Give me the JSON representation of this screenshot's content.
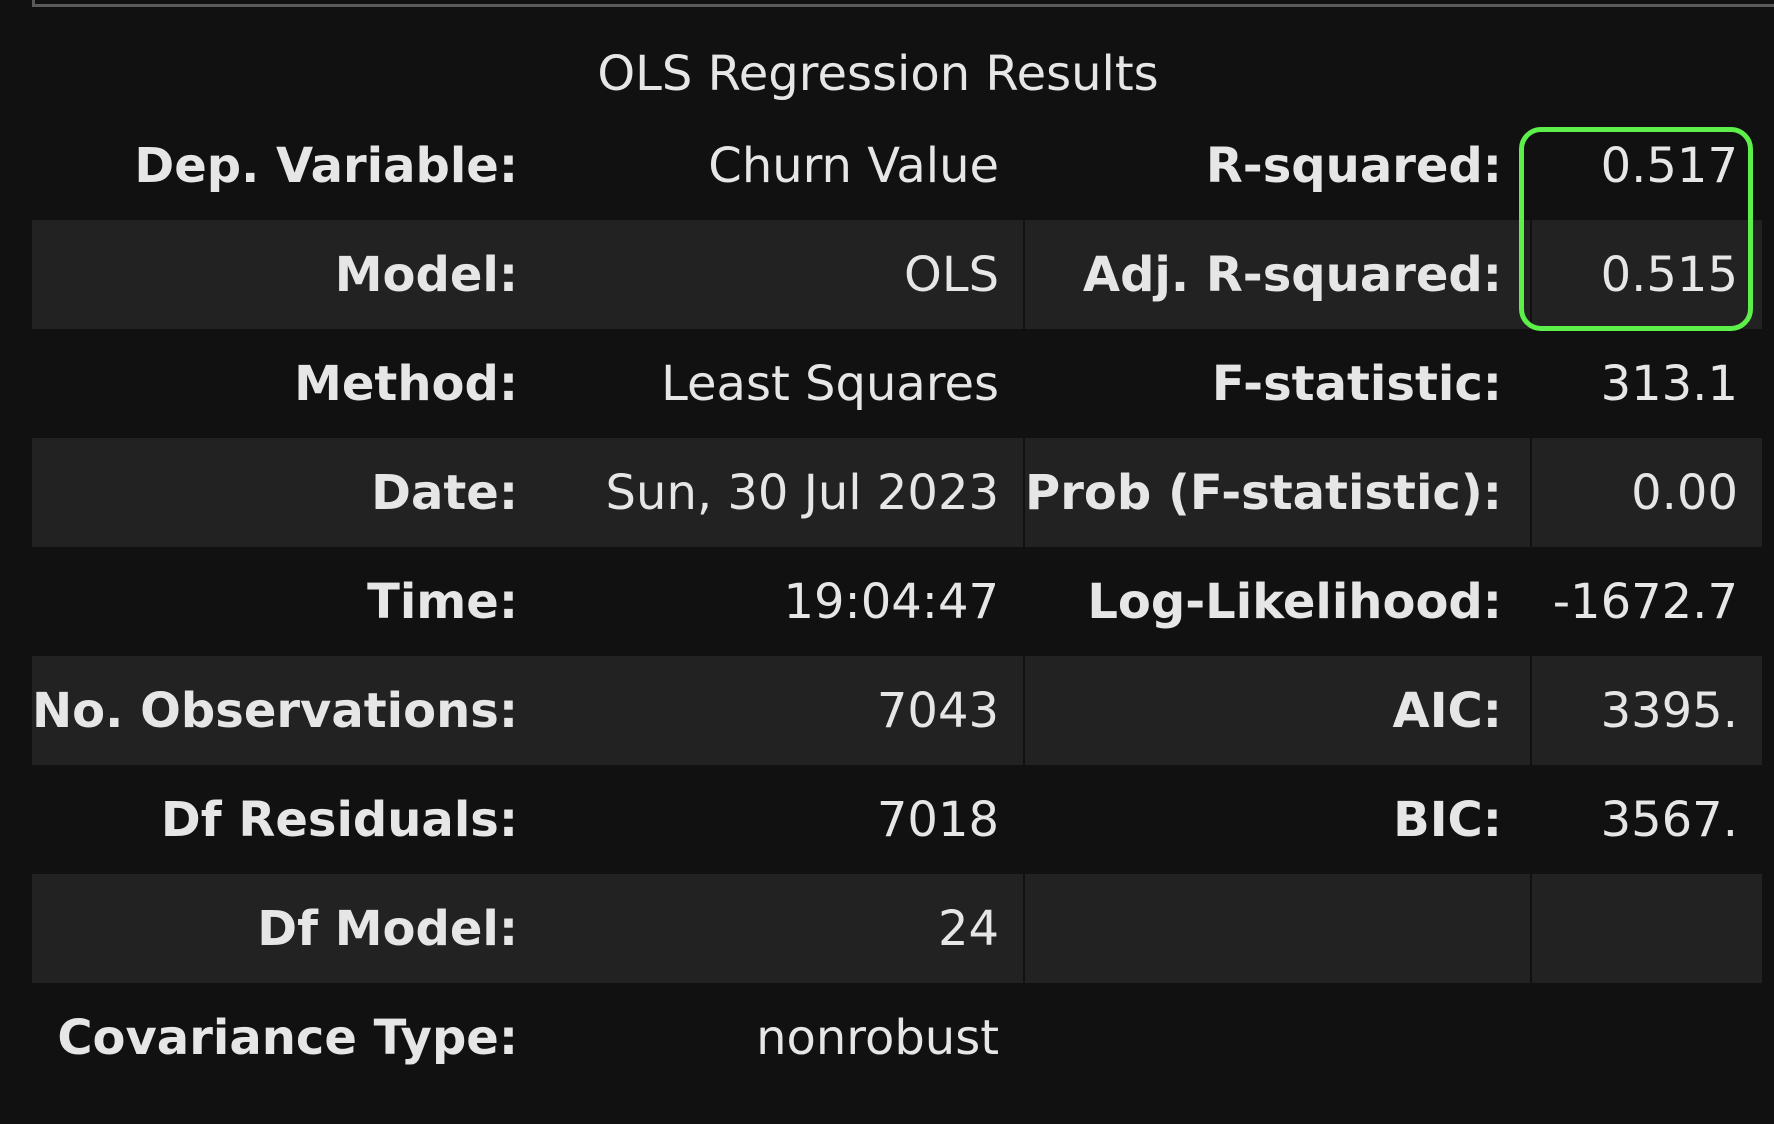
{
  "summary": {
    "title": "OLS Regression Results",
    "rows": [
      {
        "label_left": "Dep. Variable:",
        "value_left": "Churn Value",
        "label_right": "R-squared:",
        "value_right": "0.517"
      },
      {
        "label_left": "Model:",
        "value_left": "OLS",
        "label_right": "Adj. R-squared:",
        "value_right": "0.515"
      },
      {
        "label_left": "Method:",
        "value_left": "Least Squares",
        "label_right": "F-statistic:",
        "value_right": "313.1"
      },
      {
        "label_left": "Date:",
        "value_left": "Sun, 30 Jul 2023",
        "label_right": "Prob (F-statistic):",
        "value_right": "0.00"
      },
      {
        "label_left": "Time:",
        "value_left": "19:04:47",
        "label_right": "Log-Likelihood:",
        "value_right": "-1672.7"
      },
      {
        "label_left": "No. Observations:",
        "value_left": "7043",
        "label_right": "AIC:",
        "value_right": "3395."
      },
      {
        "label_left": "Df Residuals:",
        "value_left": "7018",
        "label_right": "BIC:",
        "value_right": "3567."
      },
      {
        "label_left": "Df Model:",
        "value_left": "24",
        "label_right": "",
        "value_right": ""
      },
      {
        "label_left": "Covariance Type:",
        "value_left": "nonrobust",
        "label_right": "",
        "value_right": ""
      }
    ]
  },
  "highlight": {
    "color": "#5ef04a"
  },
  "colors": {
    "background": "#111111",
    "row_alt": "#222222",
    "text": "#e6e6e6"
  }
}
